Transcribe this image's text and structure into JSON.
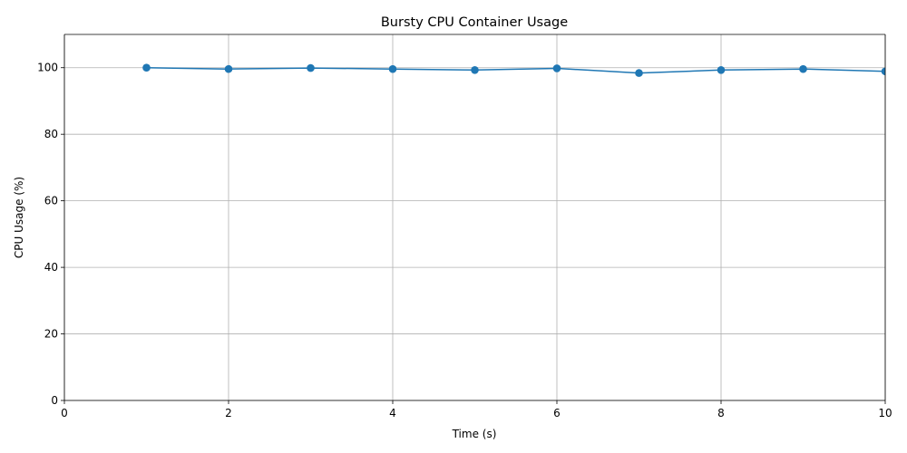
{
  "chart_data": {
    "type": "line",
    "title": "Bursty CPU Container Usage",
    "xlabel": "Time (s)",
    "ylabel": "CPU Usage (%)",
    "xlim": [
      0,
      10
    ],
    "ylim": [
      0,
      110
    ],
    "xticks": [
      0,
      2,
      4,
      6,
      8,
      10
    ],
    "yticks": [
      0,
      20,
      40,
      60,
      80,
      100
    ],
    "grid": true,
    "series": [
      {
        "color": "#1f77b4",
        "marker": "circle",
        "x": [
          1,
          2,
          3,
          4,
          5,
          6,
          7,
          8,
          9,
          10
        ],
        "y": [
          100.0,
          99.6,
          99.9,
          99.6,
          99.3,
          99.8,
          98.4,
          99.3,
          99.6,
          98.9
        ]
      }
    ]
  }
}
